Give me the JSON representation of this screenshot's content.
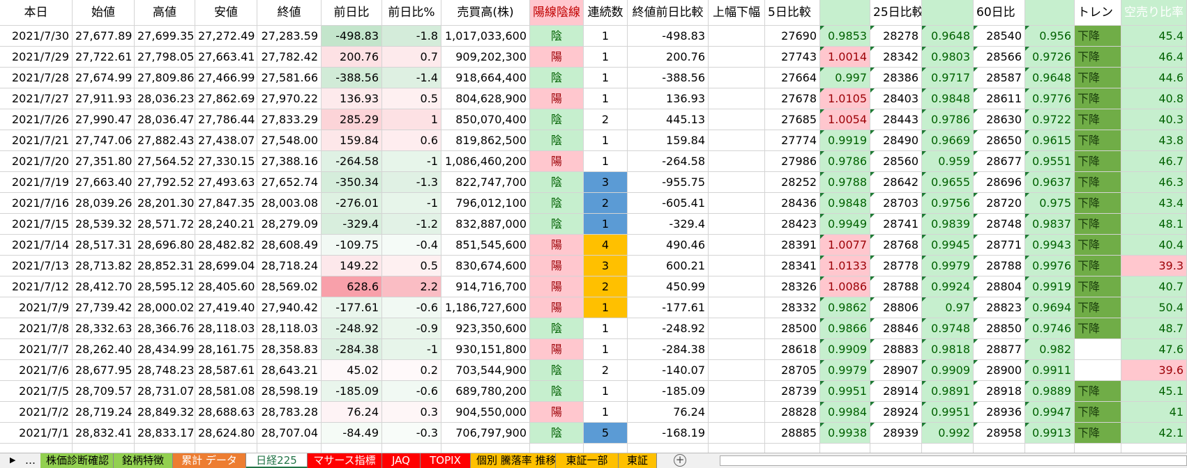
{
  "table": {
    "header": [
      "本日",
      "始値",
      "高値",
      "安値",
      "終値",
      "前日比",
      "前日比%",
      "売買高(株)",
      "陽線陰線",
      "連続数",
      "終値前日比較",
      "上幅下幅",
      "5日比較",
      null,
      "25日比較",
      null,
      "60日比",
      null,
      "トレン",
      "空売り比率"
    ],
    "rows": [
      [
        "2021/7/30",
        "27,677.89",
        "27,699.35",
        "27,272.49",
        "27,283.59",
        "-498.83",
        "-1.8",
        "1,017,033,600",
        "陰",
        "1",
        "-498.83",
        null,
        "27690",
        "0.9853",
        "28278",
        "0.9648",
        "28540",
        "0.956",
        "下降",
        "45.4"
      ],
      [
        "2021/7/29",
        "27,722.61",
        "27,798.05",
        "27,663.41",
        "27,782.42",
        "200.76",
        "0.7",
        "909,202,300",
        "陽",
        "1",
        "200.76",
        null,
        "27743",
        "1.0014",
        "28342",
        "0.9803",
        "28566",
        "0.9726",
        "下降",
        "46.4"
      ],
      [
        "2021/7/28",
        "27,674.99",
        "27,809.86",
        "27,466.99",
        "27,581.66",
        "-388.56",
        "-1.4",
        "918,664,400",
        "陰",
        "1",
        "-388.56",
        null,
        "27664",
        "0.997",
        "28386",
        "0.9717",
        "28587",
        "0.9648",
        "下降",
        "44.6"
      ],
      [
        "2021/7/27",
        "27,911.93",
        "28,036.23",
        "27,862.69",
        "27,970.22",
        "136.93",
        "0.5",
        "804,628,900",
        "陽",
        "1",
        "136.93",
        null,
        "27678",
        "1.0105",
        "28403",
        "0.9848",
        "28611",
        "0.9776",
        "下降",
        "40.8"
      ],
      [
        "2021/7/26",
        "27,990.47",
        "28,036.47",
        "27,786.44",
        "27,833.29",
        "285.29",
        "1",
        "850,070,400",
        "陰",
        "2",
        "445.13",
        null,
        "27685",
        "1.0054",
        "28443",
        "0.9786",
        "28630",
        "0.9722",
        "下降",
        "40.3"
      ],
      [
        "2021/7/21",
        "27,747.06",
        "27,882.43",
        "27,438.07",
        "27,548.00",
        "159.84",
        "0.6",
        "819,862,500",
        "陰",
        "1",
        "159.84",
        null,
        "27774",
        "0.9919",
        "28490",
        "0.9669",
        "28650",
        "0.9615",
        "下降",
        "43.8"
      ],
      [
        "2021/7/20",
        "27,351.80",
        "27,564.52",
        "27,330.15",
        "27,388.16",
        "-264.58",
        "-1",
        "1,086,460,200",
        "陽",
        "1",
        "-264.58",
        null,
        "27986",
        "0.9786",
        "28560",
        "0.959",
        "28677",
        "0.9551",
        "下降",
        "46.7"
      ],
      [
        "2021/7/19",
        "27,663.40",
        "27,792.52",
        "27,493.63",
        "27,652.74",
        "-350.34",
        "-1.3",
        "822,747,700",
        "陰",
        "3",
        "-955.75",
        null,
        "28252",
        "0.9788",
        "28642",
        "0.9655",
        "28696",
        "0.9637",
        "下降",
        "46.3"
      ],
      [
        "2021/7/16",
        "28,039.26",
        "28,201.30",
        "27,847.35",
        "28,003.08",
        "-276.01",
        "-1",
        "796,012,100",
        "陰",
        "2",
        "-605.41",
        null,
        "28436",
        "0.9848",
        "28703",
        "0.9756",
        "28720",
        "0.975",
        "下降",
        "43.4"
      ],
      [
        "2021/7/15",
        "28,539.32",
        "28,571.72",
        "28,240.21",
        "28,279.09",
        "-329.4",
        "-1.2",
        "832,887,000",
        "陰",
        "1",
        "-329.4",
        null,
        "28423",
        "0.9949",
        "28741",
        "0.9839",
        "28748",
        "0.9837",
        "下降",
        "48.1"
      ],
      [
        "2021/7/14",
        "28,517.31",
        "28,696.80",
        "28,482.82",
        "28,608.49",
        "-109.75",
        "-0.4",
        "851,545,600",
        "陽",
        "4",
        "490.46",
        null,
        "28391",
        "1.0077",
        "28768",
        "0.9945",
        "28771",
        "0.9943",
        "下降",
        "40.4"
      ],
      [
        "2021/7/13",
        "28,713.82",
        "28,852.31",
        "28,699.04",
        "28,718.24",
        "149.22",
        "0.5",
        "830,674,600",
        "陽",
        "3",
        "600.21",
        null,
        "28341",
        "1.0133",
        "28778",
        "0.9979",
        "28788",
        "0.9976",
        "下降",
        "39.3"
      ],
      [
        "2021/7/12",
        "28,412.70",
        "28,595.12",
        "28,405.60",
        "28,569.02",
        "628.6",
        "2.2",
        "914,716,700",
        "陽",
        "2",
        "450.99",
        null,
        "28326",
        "1.0086",
        "28788",
        "0.9924",
        "28804",
        "0.9919",
        "下降",
        "40.7"
      ],
      [
        "2021/7/9",
        "27,739.42",
        "28,000.02",
        "27,419.40",
        "27,940.42",
        "-177.61",
        "-0.6",
        "1,186,727,600",
        "陽",
        "1",
        "-177.61",
        null,
        "28332",
        "0.9862",
        "28806",
        "0.97",
        "28823",
        "0.9694",
        "下降",
        "50.4"
      ],
      [
        "2021/7/8",
        "28,332.63",
        "28,366.76",
        "28,118.03",
        "28,118.03",
        "-248.92",
        "-0.9",
        "923,350,600",
        "陰",
        "1",
        "-248.92",
        null,
        "28500",
        "0.9866",
        "28846",
        "0.9748",
        "28850",
        "0.9746",
        "下降",
        "48.7"
      ],
      [
        "2021/7/7",
        "28,262.40",
        "28,434.99",
        "28,161.75",
        "28,358.83",
        "-284.38",
        "-1",
        "930,151,800",
        "陽",
        "1",
        "-284.38",
        null,
        "28618",
        "0.9909",
        "28883",
        "0.9818",
        "28877",
        "0.982",
        null,
        "47.6"
      ],
      [
        "2021/7/6",
        "28,677.95",
        "28,748.23",
        "28,587.61",
        "28,643.21",
        "45.02",
        "0.2",
        "703,544,900",
        "陰",
        "2",
        "-140.07",
        null,
        "28705",
        "0.9979",
        "28907",
        "0.9909",
        "28900",
        "0.9911",
        null,
        "39.6"
      ],
      [
        "2021/7/5",
        "28,709.57",
        "28,731.07",
        "28,581.08",
        "28,598.19",
        "-185.09",
        "-0.6",
        "689,780,200",
        "陰",
        "1",
        "-185.09",
        null,
        "28739",
        "0.9951",
        "28914",
        "0.9891",
        "28918",
        "0.9889",
        "下降",
        "45.1"
      ],
      [
        "2021/7/2",
        "28,719.24",
        "28,849.32",
        "28,688.63",
        "28,783.28",
        "76.24",
        "0.3",
        "904,550,000",
        "陽",
        "1",
        "76.24",
        null,
        "28828",
        "0.9984",
        "28924",
        "0.9951",
        "28936",
        "0.9947",
        "下降",
        "41"
      ],
      [
        "2021/7/1",
        "28,832.41",
        "28,833.17",
        "28,624.80",
        "28,707.04",
        "-84.49",
        "-0.3",
        "706,797,900",
        "陰",
        "5",
        "-168.19",
        null,
        "28885",
        "0.9938",
        "28939",
        "0.992",
        "28958",
        "0.9913",
        "下降",
        "42.1"
      ]
    ],
    "streak_colors": [
      null,
      null,
      null,
      null,
      null,
      null,
      null,
      "#5b9bd5",
      "#5b9bd5",
      "#5b9bd5",
      "#ffc000",
      "#ffc000",
      "#ffc000",
      "#ffc000",
      null,
      null,
      null,
      null,
      null,
      "#5b9bd5"
    ]
  },
  "tabs": [
    "…",
    "株価診断確認",
    "銘柄特徴",
    "累計 データ",
    "日経225",
    "マサース指標",
    "JAQ",
    "TOPIX",
    "個別 騰落率 推移",
    "東証一部",
    "東証"
  ],
  "tab_colors": [
    null,
    "#92d050",
    "#92d050",
    "#ed7d31",
    null,
    "#ff0000",
    "#ff0000",
    "#ff0000",
    "#ffc000",
    "#ffc000",
    "#ffc000"
  ],
  "active_tab": 4
}
